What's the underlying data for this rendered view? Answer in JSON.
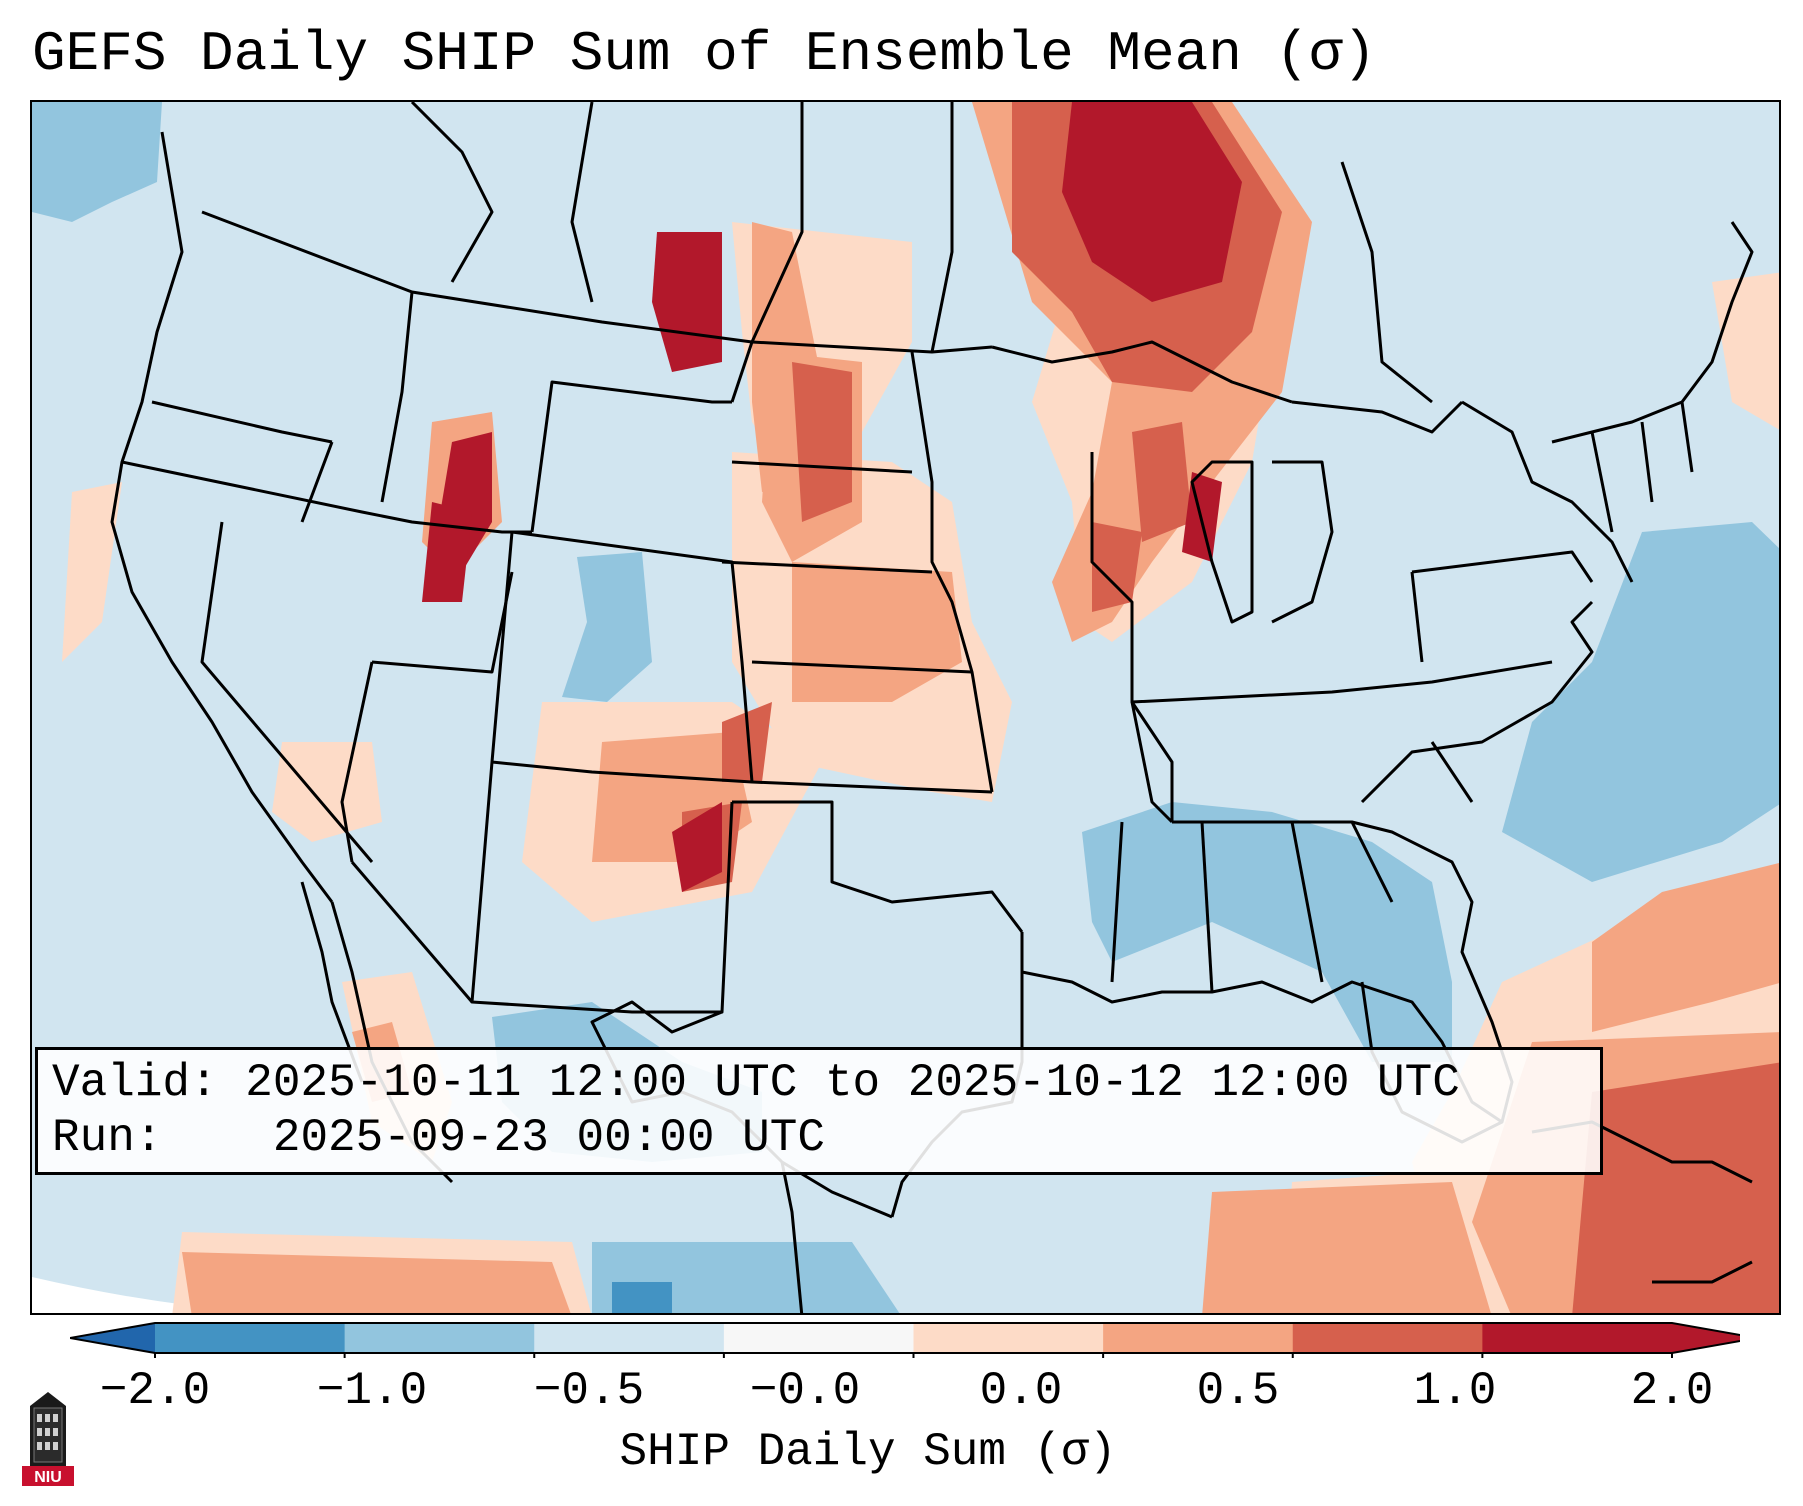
{
  "title": "GEFS Daily SHIP Sum of Ensemble Mean (σ)",
  "info": {
    "valid_label": "Valid:",
    "valid_value": "2025-10-11 12:00 UTC to 2025-10-12 12:00 UTC",
    "run_label": "Run:",
    "run_value": "2025-09-23 00:00 UTC"
  },
  "colorbar": {
    "label": "SHIP Daily Sum (σ)",
    "ticks": [
      "−2.0",
      "−1.0",
      "−0.5",
      "−0.0",
      "0.0",
      "0.5",
      "1.0",
      "2.0"
    ],
    "bin_colors": [
      "#4393c3",
      "#92c5de",
      "#d1e5f0",
      "#f7f7f7",
      "#fddbc7",
      "#f4a582",
      "#d6604d",
      "#b2182b"
    ],
    "under_color": "#2166ac",
    "over_color": "#b2182b",
    "extend": "both"
  },
  "logo": {
    "text": "NIU",
    "icon": "university-tower-icon"
  }
}
